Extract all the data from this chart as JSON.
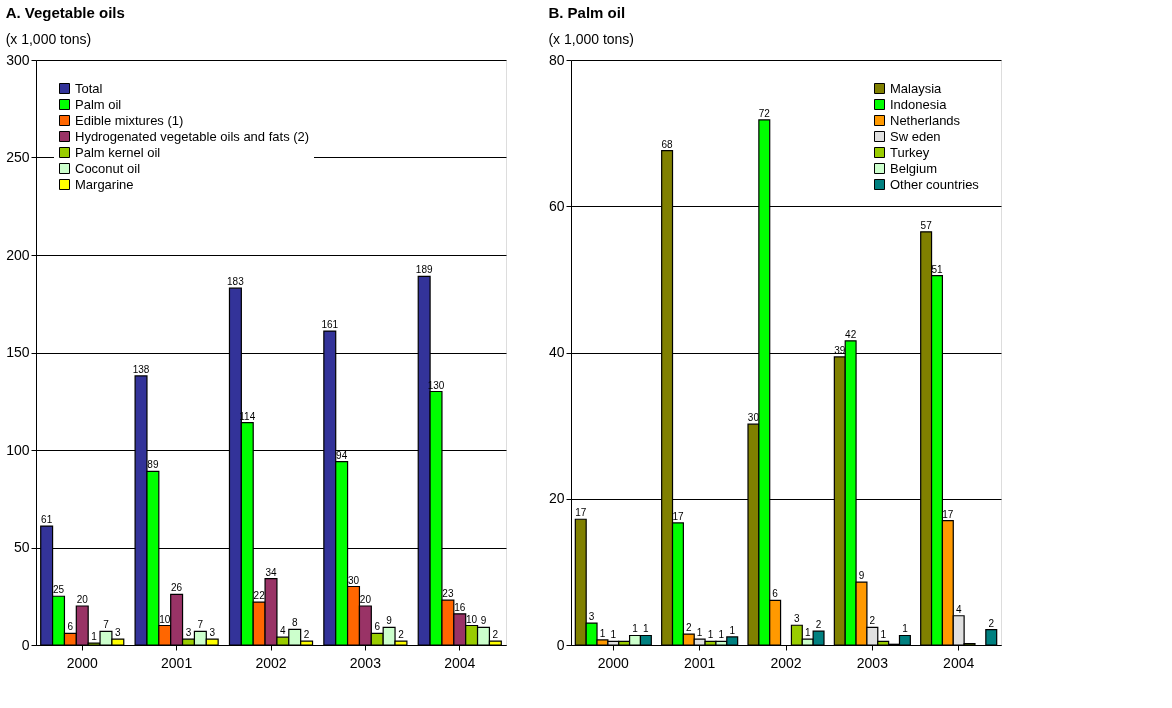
{
  "chart_data": [
    {
      "type": "bar",
      "title": "A. Vegetable oils",
      "subtitle": "(x 1,000 tons)",
      "categories": [
        "2000",
        "2001",
        "2002",
        "2003",
        "2004"
      ],
      "ylim": [
        0,
        300
      ],
      "yticks": [
        0,
        50,
        100,
        150,
        200,
        250,
        300
      ],
      "grid": "y",
      "legend": "top left",
      "data_labels": true,
      "series": [
        {
          "name": "Total",
          "color": "#333399",
          "values": [
            61,
            138,
            183,
            161,
            189
          ]
        },
        {
          "name": "Palm oil",
          "color": "#00ff00",
          "values": [
            25,
            89,
            114,
            94,
            130
          ]
        },
        {
          "name": "Edible mixtures (1)",
          "color": "#ff6600",
          "values": [
            6,
            10,
            22,
            30,
            23
          ]
        },
        {
          "name": "Hydrogenated vegetable oils and fats (2)",
          "color": "#993366",
          "values": [
            20,
            26,
            34,
            20,
            16
          ]
        },
        {
          "name": "Palm kernel oil",
          "color": "#99cc00",
          "values": [
            1,
            3,
            4,
            6,
            10
          ]
        },
        {
          "name": "Coconut oil",
          "color": "#ccffcc",
          "values": [
            7,
            7,
            8,
            9,
            9
          ]
        },
        {
          "name": "Margarine",
          "color": "#ffff00",
          "values": [
            3,
            3,
            2,
            2,
            2
          ]
        }
      ]
    },
    {
      "type": "bar",
      "title": "B. Palm oil",
      "subtitle": "(x 1,000 tons)",
      "categories": [
        "2000",
        "2001",
        "2002",
        "2003",
        "2004"
      ],
      "ylim": [
        0,
        80
      ],
      "yticks": [
        0,
        20,
        40,
        60,
        80
      ],
      "grid": "y",
      "legend": "top right",
      "series": [
        {
          "name": "Malaysia",
          "color": "#808000",
          "values": [
            17.2,
            67.6,
            30.2,
            39.4,
            56.5
          ],
          "value_labels": [
            "17",
            "68",
            "30",
            "39",
            "57"
          ]
        },
        {
          "name": "Indonesia",
          "color": "#00ff00",
          "values": [
            3,
            16.7,
            71.8,
            41.6,
            50.5
          ],
          "value_labels": [
            "3",
            "17",
            "72",
            "42",
            "51"
          ]
        },
        {
          "name": "Netherlands",
          "color": "#ff9900",
          "values": [
            0.7,
            1.5,
            6.1,
            8.6,
            17
          ],
          "value_labels": [
            "1",
            "2",
            "6",
            "9",
            "17"
          ]
        },
        {
          "name": "Sw eden",
          "color": "#e0e0e0",
          "values": [
            0.5,
            0.8,
            null,
            2.4,
            4
          ],
          "value_labels": [
            "1",
            "1",
            null,
            "2",
            "4"
          ]
        },
        {
          "name": "Turkey",
          "color": "#99cc00",
          "values": [
            0.5,
            0.5,
            2.7,
            0.5,
            0.2
          ],
          "value_labels": [
            null,
            "1",
            "3",
            "1",
            null
          ]
        },
        {
          "name": "Belgium",
          "color": "#ccffcc",
          "values": [
            1.3,
            0.5,
            0.8,
            0.1,
            null
          ],
          "value_labels": [
            "1",
            "1",
            "1",
            null,
            null
          ]
        },
        {
          "name": "Other countries",
          "color": "#008080",
          "values": [
            1.3,
            1.1,
            1.9,
            1.3,
            2.1
          ],
          "value_labels": [
            "1",
            "1",
            "2",
            "1",
            "2"
          ]
        }
      ]
    }
  ]
}
